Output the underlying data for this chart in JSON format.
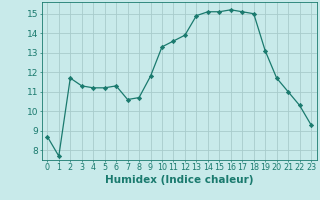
{
  "xlabel": "Humidex (Indice chaleur)",
  "ylabel": "",
  "x": [
    0,
    1,
    2,
    3,
    4,
    5,
    6,
    7,
    8,
    9,
    10,
    11,
    12,
    13,
    14,
    15,
    16,
    17,
    18,
    19,
    20,
    21,
    22,
    23
  ],
  "y": [
    8.7,
    7.7,
    11.7,
    11.3,
    11.2,
    11.2,
    11.3,
    10.6,
    10.7,
    11.8,
    13.3,
    13.6,
    13.9,
    14.9,
    15.1,
    15.1,
    15.2,
    15.1,
    15.0,
    13.1,
    11.7,
    11.0,
    10.3,
    9.3
  ],
  "line_color": "#1a7a6e",
  "marker": "D",
  "marker_size": 2.2,
  "bg_color": "#c8eaea",
  "grid_color": "#a8cccc",
  "axis_color": "#1a7a6e",
  "tick_color": "#1a7a6e",
  "label_color": "#1a7a6e",
  "ylim": [
    7.5,
    15.6
  ],
  "yticks": [
    8,
    9,
    10,
    11,
    12,
    13,
    14,
    15
  ],
  "xlim": [
    -0.5,
    23.5
  ],
  "xticks": [
    0,
    1,
    2,
    3,
    4,
    5,
    6,
    7,
    8,
    9,
    10,
    11,
    12,
    13,
    14,
    15,
    16,
    17,
    18,
    19,
    20,
    21,
    22,
    23
  ],
  "xlabel_fontsize": 7.5,
  "ytick_fontsize": 6.5,
  "xtick_fontsize": 5.8
}
